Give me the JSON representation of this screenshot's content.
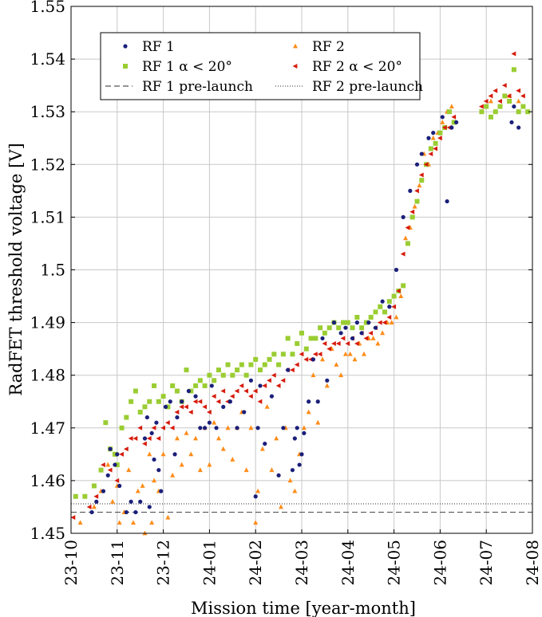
{
  "chart_data": {
    "type": "scatter",
    "title": "",
    "xlabel": "Mission time [year-month]",
    "ylabel": "RadFET threshold voltage [V]",
    "x_categories": [
      "23-10",
      "23-11",
      "23-12",
      "24-01",
      "24-02",
      "24-03",
      "24-04",
      "24-05",
      "24-06",
      "24-07",
      "24-08"
    ],
    "xlim": [
      0,
      10
    ],
    "ylim": [
      1.45,
      1.55
    ],
    "y_ticks": [
      1.45,
      1.46,
      1.47,
      1.48,
      1.49,
      1.5,
      1.51,
      1.52,
      1.53,
      1.54,
      1.55
    ],
    "y_tick_labels": [
      "1.45",
      "1.46",
      "1.47",
      "1.48",
      "1.49",
      "1.5",
      "1.51",
      "1.52",
      "1.53",
      "1.54",
      "1.55"
    ],
    "grid": true,
    "legend_position": "top-center",
    "colors": {
      "rf1": "#1a1f7a",
      "rf1_alpha": "#9acd32",
      "rf2": "#ff8c1a",
      "rf2_alpha": "#d61a0a",
      "line": "#555555",
      "grid": "#c8c8c8"
    },
    "legend": [
      {
        "key": "rf1",
        "label": "RF 1",
        "marker": "circle"
      },
      {
        "key": "rf2",
        "label": "RF 2",
        "marker": "triangle-up"
      },
      {
        "key": "rf1_alpha",
        "label": "RF 1 α < 20°",
        "marker": "square"
      },
      {
        "key": "rf2_alpha",
        "label": "RF 2 α < 20°",
        "marker": "triangle-left"
      },
      {
        "key": "rf1_prelaunch",
        "label": "RF 1 pre-launch",
        "marker": "dashed-line"
      },
      {
        "key": "rf2_prelaunch",
        "label": "RF 2 pre-launch",
        "marker": "dotted-line"
      }
    ],
    "reference_lines": [
      {
        "name": "RF 1 pre-launch",
        "y": 1.454,
        "style": "dashed"
      },
      {
        "name": "RF 2 pre-launch",
        "y": 1.4556,
        "style": "dotted"
      }
    ],
    "series": [
      {
        "name": "RF 1",
        "key": "rf1",
        "marker": "circle",
        "x": [
          0.45,
          0.55,
          0.7,
          0.8,
          0.85,
          0.95,
          1.0,
          1.05,
          1.2,
          1.3,
          1.4,
          1.5,
          1.6,
          1.65,
          1.7,
          1.75,
          1.8,
          1.85,
          1.9,
          1.95,
          2.05,
          2.15,
          2.25,
          2.3,
          2.4,
          2.55,
          2.7,
          2.8,
          2.9,
          3.0,
          3.05,
          3.15,
          3.3,
          3.45,
          3.6,
          3.75,
          3.9,
          4.0,
          4.05,
          4.1,
          4.2,
          4.35,
          4.5,
          4.6,
          4.7,
          4.8,
          4.85,
          4.9,
          4.95,
          5.0,
          5.05,
          5.15,
          5.25,
          5.35,
          5.45,
          5.55,
          5.7,
          5.85,
          5.95,
          6.1,
          6.2,
          6.3,
          6.45,
          6.6,
          6.75,
          6.9,
          7.05,
          7.2,
          7.35,
          7.5,
          7.6,
          7.75,
          7.85,
          8.05,
          8.15,
          8.25,
          8.35,
          9.55,
          9.6,
          9.7
        ],
        "y": [
          1.454,
          1.456,
          1.458,
          1.461,
          1.466,
          1.463,
          1.465,
          1.459,
          1.454,
          1.456,
          1.454,
          1.456,
          1.468,
          1.472,
          1.455,
          1.469,
          1.464,
          1.471,
          1.462,
          1.458,
          1.474,
          1.475,
          1.465,
          1.472,
          1.475,
          1.477,
          1.476,
          1.47,
          1.47,
          1.471,
          1.478,
          1.47,
          1.474,
          1.475,
          1.47,
          1.473,
          1.479,
          1.457,
          1.47,
          1.478,
          1.467,
          1.476,
          1.461,
          1.47,
          1.481,
          1.462,
          1.468,
          1.47,
          1.463,
          1.465,
          1.469,
          1.475,
          1.483,
          1.475,
          1.487,
          1.479,
          1.49,
          1.488,
          1.489,
          1.487,
          1.49,
          1.488,
          1.49,
          1.489,
          1.494,
          1.493,
          1.5,
          1.51,
          1.515,
          1.52,
          1.522,
          1.525,
          1.526,
          1.529,
          1.513,
          1.527,
          1.528,
          1.528,
          1.531,
          1.527
        ]
      },
      {
        "name": "RF 1 α < 20°",
        "key": "rf1_alpha",
        "marker": "square",
        "x": [
          0.1,
          0.3,
          0.5,
          0.65,
          0.75,
          0.85,
          0.95,
          1.0,
          1.1,
          1.2,
          1.3,
          1.4,
          1.5,
          1.6,
          1.7,
          1.8,
          1.9,
          2.0,
          2.1,
          2.2,
          2.3,
          2.4,
          2.5,
          2.6,
          2.7,
          2.8,
          2.9,
          3.0,
          3.1,
          3.2,
          3.3,
          3.4,
          3.5,
          3.6,
          3.7,
          3.8,
          3.9,
          4.0,
          4.1,
          4.2,
          4.3,
          4.4,
          4.5,
          4.6,
          4.7,
          4.8,
          4.9,
          5.0,
          5.1,
          5.2,
          5.3,
          5.4,
          5.5,
          5.6,
          5.7,
          5.8,
          5.9,
          6.0,
          6.1,
          6.2,
          6.3,
          6.4,
          6.5,
          6.6,
          6.7,
          6.8,
          6.9,
          7.0,
          7.1,
          7.2,
          7.3,
          7.4,
          7.5,
          7.6,
          7.7,
          7.8,
          7.9,
          8.0,
          8.1,
          8.2,
          8.3,
          8.9,
          9.0,
          9.1,
          9.2,
          9.3,
          9.4,
          9.5,
          9.6,
          9.7,
          9.8,
          9.9
        ],
        "y": [
          1.457,
          1.457,
          1.459,
          1.462,
          1.471,
          1.466,
          1.465,
          1.463,
          1.47,
          1.472,
          1.475,
          1.477,
          1.473,
          1.474,
          1.475,
          1.478,
          1.475,
          1.476,
          1.474,
          1.478,
          1.477,
          1.475,
          1.481,
          1.477,
          1.478,
          1.479,
          1.478,
          1.48,
          1.479,
          1.481,
          1.48,
          1.482,
          1.48,
          1.481,
          1.482,
          1.48,
          1.482,
          1.483,
          1.481,
          1.482,
          1.483,
          1.484,
          1.482,
          1.484,
          1.487,
          1.484,
          1.486,
          1.488,
          1.485,
          1.487,
          1.487,
          1.489,
          1.488,
          1.489,
          1.49,
          1.489,
          1.49,
          1.49,
          1.489,
          1.491,
          1.489,
          1.49,
          1.491,
          1.492,
          1.493,
          1.492,
          1.494,
          1.495,
          1.496,
          1.497,
          1.505,
          1.51,
          1.513,
          1.517,
          1.52,
          1.523,
          1.524,
          1.526,
          1.527,
          1.53,
          1.528,
          1.53,
          1.531,
          1.529,
          1.53,
          1.531,
          1.533,
          1.532,
          1.538,
          1.53,
          1.531,
          1.53
        ]
      },
      {
        "name": "RF 2",
        "key": "rf2",
        "marker": "triangle-up",
        "x": [
          0.2,
          0.5,
          0.65,
          0.8,
          0.9,
          1.0,
          1.05,
          1.15,
          1.25,
          1.35,
          1.45,
          1.55,
          1.6,
          1.7,
          1.75,
          1.8,
          1.9,
          2.0,
          2.1,
          2.2,
          2.3,
          2.4,
          2.5,
          2.6,
          2.7,
          2.8,
          2.9,
          3.0,
          3.1,
          3.2,
          3.3,
          3.4,
          3.5,
          3.6,
          3.7,
          3.8,
          3.9,
          4.0,
          4.05,
          4.15,
          4.25,
          4.35,
          4.45,
          4.55,
          4.65,
          4.75,
          4.85,
          4.95,
          5.05,
          5.15,
          5.25,
          5.35,
          5.45,
          5.55,
          5.65,
          5.75,
          5.85,
          5.95,
          6.05,
          6.15,
          6.25,
          6.35,
          6.45,
          6.55,
          6.65,
          6.75,
          6.85,
          6.95,
          7.05,
          7.15,
          7.25,
          7.35,
          7.45,
          7.55,
          7.65,
          7.75,
          7.85,
          7.95,
          8.05,
          8.15,
          8.25,
          8.9,
          9.1,
          9.3,
          9.5,
          9.7
        ],
        "y": [
          1.452,
          1.455,
          1.458,
          1.463,
          1.456,
          1.459,
          1.452,
          1.454,
          1.462,
          1.452,
          1.458,
          1.459,
          1.45,
          1.465,
          1.452,
          1.46,
          1.458,
          1.465,
          1.453,
          1.461,
          1.468,
          1.463,
          1.469,
          1.465,
          1.468,
          1.462,
          1.47,
          1.463,
          1.471,
          1.468,
          1.466,
          1.47,
          1.464,
          1.47,
          1.473,
          1.462,
          1.47,
          1.452,
          1.458,
          1.466,
          1.474,
          1.462,
          1.468,
          1.455,
          1.47,
          1.46,
          1.458,
          1.465,
          1.47,
          1.473,
          1.48,
          1.471,
          1.483,
          1.478,
          1.485,
          1.482,
          1.48,
          1.484,
          1.484,
          1.483,
          1.486,
          1.484,
          1.487,
          1.487,
          1.486,
          1.488,
          1.49,
          1.49,
          1.491,
          1.495,
          1.506,
          1.508,
          1.512,
          1.516,
          1.522,
          1.52,
          1.525,
          1.526,
          1.528,
          1.53,
          1.531,
          1.53,
          1.532,
          1.531,
          1.533,
          1.532
        ]
      },
      {
        "name": "RF 2 α < 20°",
        "key": "rf2_alpha",
        "marker": "triangle-left",
        "x": [
          0.05,
          0.4,
          0.55,
          0.7,
          0.85,
          1.0,
          1.1,
          1.2,
          1.3,
          1.4,
          1.5,
          1.6,
          1.7,
          1.8,
          1.9,
          2.0,
          2.1,
          2.2,
          2.3,
          2.4,
          2.5,
          2.6,
          2.7,
          2.8,
          2.9,
          3.0,
          3.1,
          3.2,
          3.3,
          3.4,
          3.5,
          3.6,
          3.7,
          3.8,
          3.9,
          4.0,
          4.1,
          4.2,
          4.3,
          4.4,
          4.5,
          4.6,
          4.7,
          4.8,
          4.9,
          5.0,
          5.1,
          5.2,
          5.3,
          5.4,
          5.5,
          5.6,
          5.7,
          5.8,
          5.9,
          6.0,
          6.1,
          6.2,
          6.3,
          6.4,
          6.5,
          6.6,
          6.7,
          6.8,
          6.9,
          7.0,
          7.1,
          7.2,
          7.3,
          7.4,
          7.5,
          7.6,
          7.7,
          7.8,
          7.9,
          8.0,
          8.1,
          8.2,
          8.3,
          8.9,
          9.0,
          9.1,
          9.2,
          9.3,
          9.4,
          9.5,
          9.6,
          9.7,
          9.8
        ],
        "y": [
          1.453,
          1.455,
          1.457,
          1.463,
          1.462,
          1.46,
          1.465,
          1.466,
          1.468,
          1.468,
          1.47,
          1.467,
          1.468,
          1.47,
          1.468,
          1.47,
          1.471,
          1.47,
          1.473,
          1.474,
          1.474,
          1.473,
          1.475,
          1.475,
          1.474,
          1.473,
          1.476,
          1.475,
          1.477,
          1.475,
          1.476,
          1.477,
          1.478,
          1.477,
          1.476,
          1.477,
          1.475,
          1.478,
          1.479,
          1.48,
          1.478,
          1.479,
          1.481,
          1.481,
          1.482,
          1.484,
          1.483,
          1.483,
          1.484,
          1.484,
          1.486,
          1.485,
          1.486,
          1.486,
          1.487,
          1.486,
          1.487,
          1.486,
          1.488,
          1.487,
          1.488,
          1.489,
          1.49,
          1.49,
          1.491,
          1.493,
          1.496,
          1.503,
          1.508,
          1.511,
          1.515,
          1.518,
          1.52,
          1.522,
          1.523,
          1.525,
          1.527,
          1.527,
          1.529,
          1.531,
          1.532,
          1.533,
          1.534,
          1.532,
          1.535,
          1.533,
          1.541,
          1.534,
          1.533
        ]
      }
    ]
  }
}
